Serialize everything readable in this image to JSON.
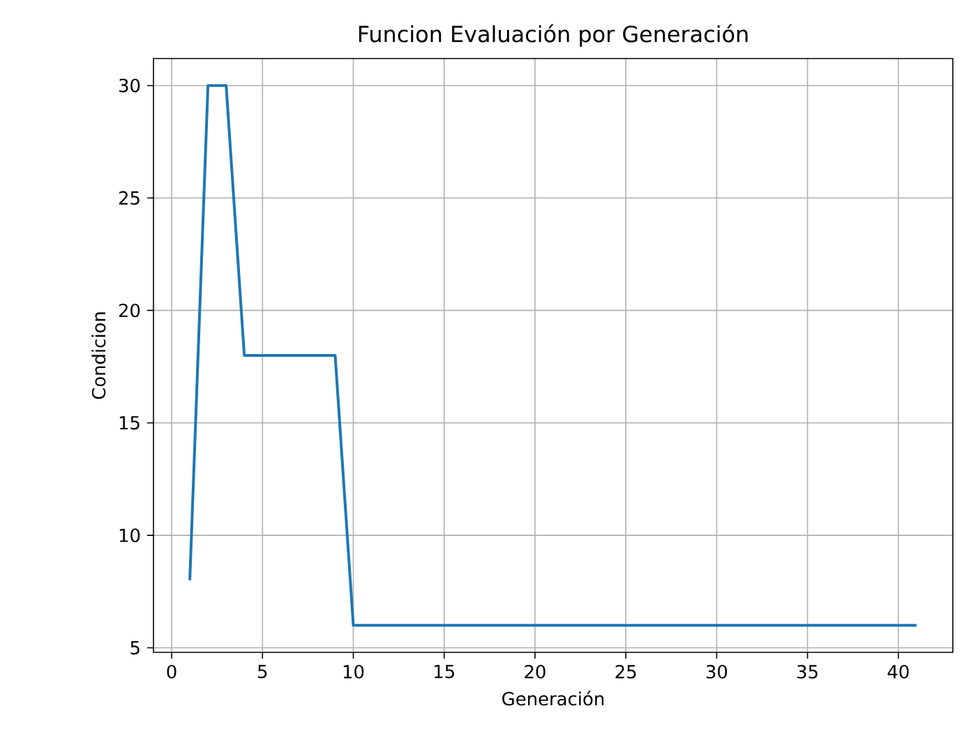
{
  "chart_data": {
    "type": "line",
    "title": "Funcion Evaluación por Generación",
    "xlabel": "Generación",
    "ylabel": "Condicion",
    "x": [
      1,
      2,
      3,
      4,
      5,
      6,
      7,
      8,
      9,
      10,
      11,
      12,
      13,
      14,
      15,
      16,
      17,
      18,
      19,
      20,
      21,
      22,
      23,
      24,
      25,
      26,
      27,
      28,
      29,
      30,
      31,
      32,
      33,
      34,
      35,
      36,
      37,
      38,
      39,
      40,
      41
    ],
    "values": [
      8,
      30,
      30,
      18,
      18,
      18,
      18,
      18,
      18,
      6,
      6,
      6,
      6,
      6,
      6,
      6,
      6,
      6,
      6,
      6,
      6,
      6,
      6,
      6,
      6,
      6,
      6,
      6,
      6,
      6,
      6,
      6,
      6,
      6,
      6,
      6,
      6,
      6,
      6,
      6,
      6
    ],
    "color": "#1f77b4",
    "xlim": [
      -1,
      43
    ],
    "ylim": [
      4.8,
      31.2
    ],
    "xticks": [
      0,
      5,
      10,
      15,
      20,
      25,
      30,
      35,
      40
    ],
    "yticks": [
      5,
      10,
      15,
      20,
      25,
      30
    ],
    "grid": true,
    "line_style": "solid"
  }
}
